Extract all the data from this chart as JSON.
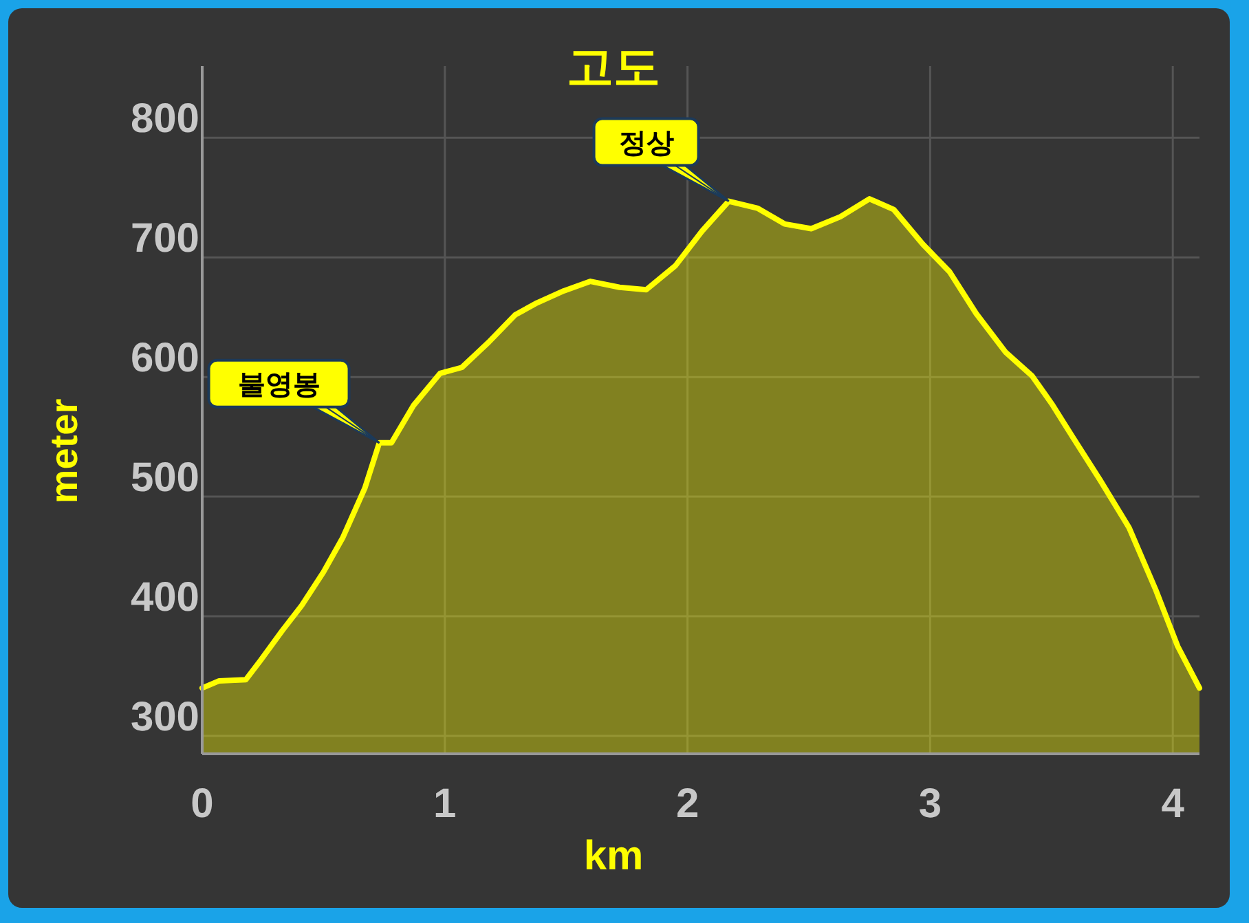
{
  "chart_data": {
    "type": "area",
    "title": "고도",
    "xlabel": "km",
    "ylabel": "meter",
    "series": [
      {
        "color": "#ffff00",
        "x": [
          0,
          0.07,
          0.18,
          0.24,
          0.33,
          0.41,
          0.5,
          0.58,
          0.67,
          0.73,
          0.78,
          0.87,
          0.98,
          1.07,
          1.18,
          1.29,
          1.38,
          1.49,
          1.6,
          1.72,
          1.83,
          1.95,
          2.06,
          2.17,
          2.29,
          2.4,
          2.51,
          2.63,
          2.75,
          2.85,
          2.97,
          3.08,
          3.19,
          3.31,
          3.42,
          3.5,
          3.59,
          3.7,
          3.82,
          3.93,
          4.02,
          4.11
        ],
        "values": [
          340,
          346,
          347,
          363,
          388,
          409,
          437,
          466,
          507,
          545,
          545,
          576,
          603,
          608,
          629,
          652,
          662,
          672,
          680,
          675,
          673,
          693,
          722,
          747,
          741,
          728,
          724,
          734,
          749,
          740,
          711,
          688,
          653,
          621,
          601,
          578,
          549,
          514,
          474,
          422,
          375,
          340
        ]
      }
    ],
    "xlim": [
      0,
      4.11
    ],
    "ylim": [
      285,
      860
    ],
    "xticks": [
      0,
      1,
      2,
      3,
      4
    ],
    "yticks": [
      300,
      400,
      500,
      600,
      700,
      800
    ],
    "grid": true,
    "annotations": [
      {
        "text": "불영봉",
        "x": 0.73,
        "y": 545
      },
      {
        "text": "정상",
        "x": 2.17,
        "y": 747
      }
    ]
  }
}
